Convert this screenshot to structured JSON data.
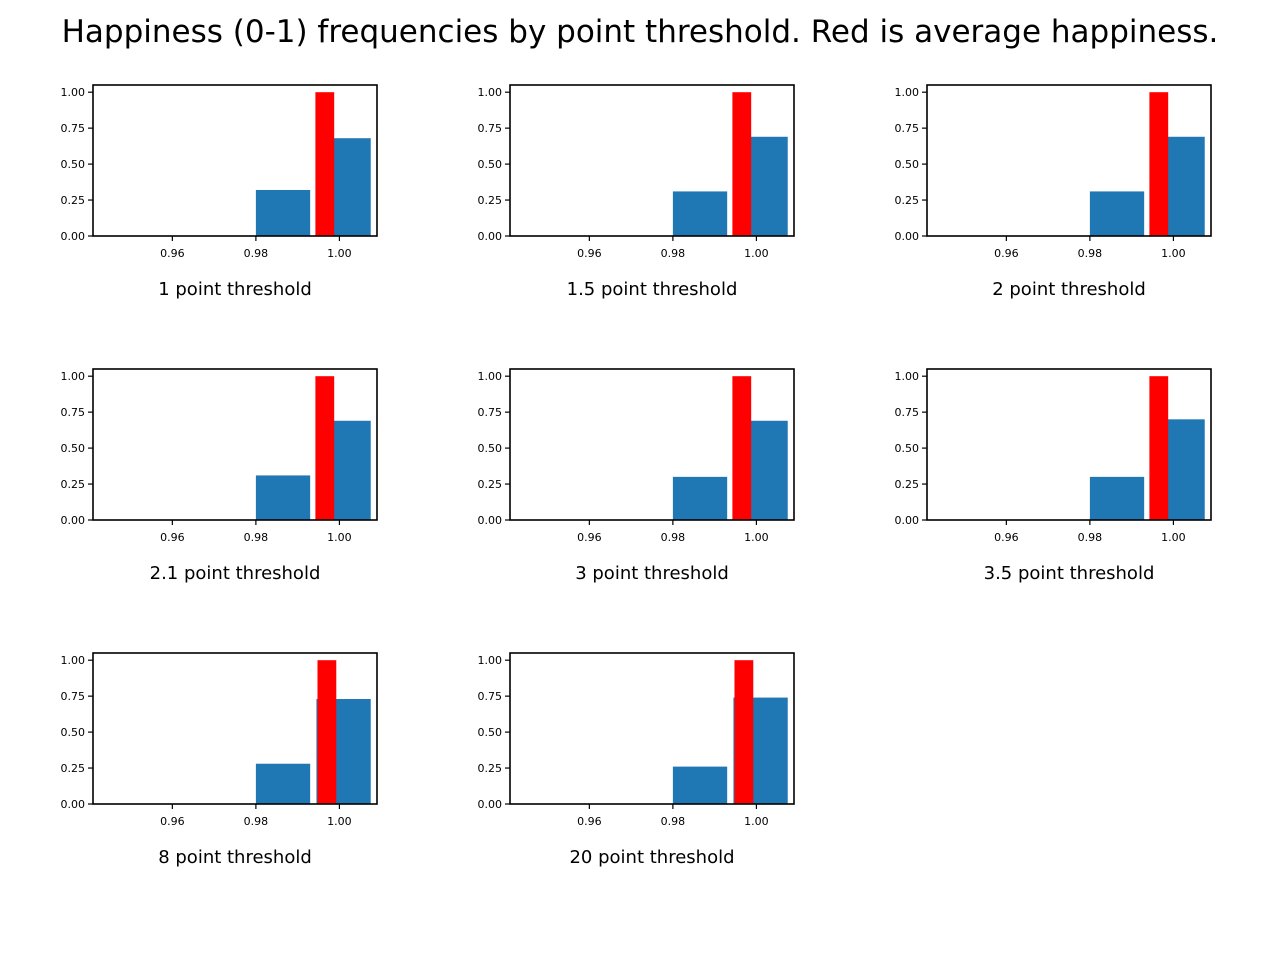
{
  "figure": {
    "title": "Happiness (0-1) frequencies by point threshold. Red is average happiness."
  },
  "colors": {
    "bar": "#1f77b4",
    "mean": "#ff0000",
    "axis": "#000000"
  },
  "chart_data": [
    {
      "type": "bar",
      "xlabel": "1 point threshold",
      "xlim": [
        0.941,
        1.009
      ],
      "ylim": [
        0,
        1.05
      ],
      "xticks": [
        "0.96",
        "0.98",
        "1.00"
      ],
      "yticks": [
        "0.00",
        "0.25",
        "0.50",
        "0.75",
        "1.00"
      ],
      "bins": [
        {
          "start": 0.98,
          "end": 0.993,
          "value": 0.32
        },
        {
          "start": 0.9945,
          "end": 1.0075,
          "value": 0.68
        }
      ],
      "mean": {
        "value": 0.9965,
        "height": 1.0
      }
    },
    {
      "type": "bar",
      "xlabel": "1.5 point threshold",
      "xlim": [
        0.941,
        1.009
      ],
      "ylim": [
        0,
        1.05
      ],
      "xticks": [
        "0.96",
        "0.98",
        "1.00"
      ],
      "yticks": [
        "0.00",
        "0.25",
        "0.50",
        "0.75",
        "1.00"
      ],
      "bins": [
        {
          "start": 0.98,
          "end": 0.993,
          "value": 0.31
        },
        {
          "start": 0.9945,
          "end": 1.0075,
          "value": 0.69
        }
      ],
      "mean": {
        "value": 0.9965,
        "height": 1.0
      }
    },
    {
      "type": "bar",
      "xlabel": "2 point threshold",
      "xlim": [
        0.941,
        1.009
      ],
      "ylim": [
        0,
        1.05
      ],
      "xticks": [
        "0.96",
        "0.98",
        "1.00"
      ],
      "yticks": [
        "0.00",
        "0.25",
        "0.50",
        "0.75",
        "1.00"
      ],
      "bins": [
        {
          "start": 0.98,
          "end": 0.993,
          "value": 0.31
        },
        {
          "start": 0.9945,
          "end": 1.0075,
          "value": 0.69
        }
      ],
      "mean": {
        "value": 0.9965,
        "height": 1.0
      }
    },
    {
      "type": "bar",
      "xlabel": "2.1 point threshold",
      "xlim": [
        0.941,
        1.009
      ],
      "ylim": [
        0,
        1.05
      ],
      "xticks": [
        "0.96",
        "0.98",
        "1.00"
      ],
      "yticks": [
        "0.00",
        "0.25",
        "0.50",
        "0.75",
        "1.00"
      ],
      "bins": [
        {
          "start": 0.98,
          "end": 0.993,
          "value": 0.31
        },
        {
          "start": 0.9945,
          "end": 1.0075,
          "value": 0.69
        }
      ],
      "mean": {
        "value": 0.9965,
        "height": 1.0
      }
    },
    {
      "type": "bar",
      "xlabel": "3 point threshold",
      "xlim": [
        0.941,
        1.009
      ],
      "ylim": [
        0,
        1.05
      ],
      "xticks": [
        "0.96",
        "0.98",
        "1.00"
      ],
      "yticks": [
        "0.00",
        "0.25",
        "0.50",
        "0.75",
        "1.00"
      ],
      "bins": [
        {
          "start": 0.98,
          "end": 0.993,
          "value": 0.3
        },
        {
          "start": 0.9945,
          "end": 1.0075,
          "value": 0.69
        }
      ],
      "mean": {
        "value": 0.9965,
        "height": 1.0
      }
    },
    {
      "type": "bar",
      "xlabel": "3.5 point threshold",
      "xlim": [
        0.941,
        1.009
      ],
      "ylim": [
        0,
        1.05
      ],
      "xticks": [
        "0.96",
        "0.98",
        "1.00"
      ],
      "yticks": [
        "0.00",
        "0.25",
        "0.50",
        "0.75",
        "1.00"
      ],
      "bins": [
        {
          "start": 0.98,
          "end": 0.993,
          "value": 0.3
        },
        {
          "start": 0.9945,
          "end": 1.0075,
          "value": 0.7
        }
      ],
      "mean": {
        "value": 0.9965,
        "height": 1.0
      }
    },
    {
      "type": "bar",
      "xlabel": "8 point threshold",
      "xlim": [
        0.941,
        1.009
      ],
      "ylim": [
        0,
        1.05
      ],
      "xticks": [
        "0.96",
        "0.98",
        "1.00"
      ],
      "yticks": [
        "0.00",
        "0.25",
        "0.50",
        "0.75",
        "1.00"
      ],
      "bins": [
        {
          "start": 0.98,
          "end": 0.993,
          "value": 0.28
        },
        {
          "start": 0.9945,
          "end": 1.0075,
          "value": 0.73
        }
      ],
      "mean": {
        "value": 0.997,
        "height": 1.0
      }
    },
    {
      "type": "bar",
      "xlabel": "20 point threshold",
      "xlim": [
        0.941,
        1.009
      ],
      "ylim": [
        0,
        1.05
      ],
      "xticks": [
        "0.96",
        "0.98",
        "1.00"
      ],
      "yticks": [
        "0.00",
        "0.25",
        "0.50",
        "0.75",
        "1.00"
      ],
      "bins": [
        {
          "start": 0.98,
          "end": 0.993,
          "value": 0.26
        },
        {
          "start": 0.9945,
          "end": 1.0075,
          "value": 0.74
        }
      ],
      "mean": {
        "value": 0.997,
        "height": 1.0
      }
    }
  ]
}
